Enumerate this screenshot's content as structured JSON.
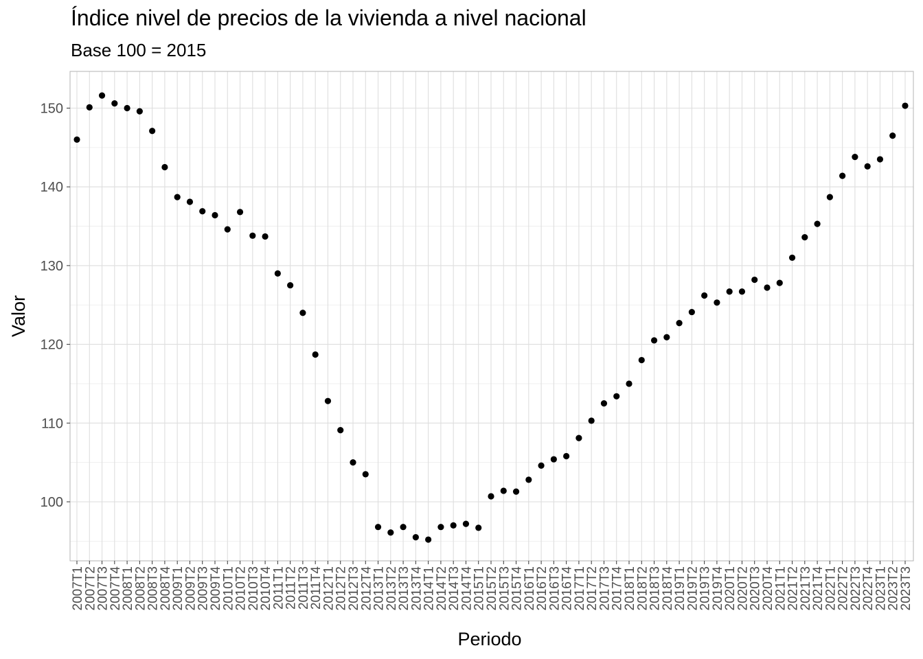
{
  "chart_data": {
    "type": "scatter",
    "title": "Índice nivel de precios de la vivienda a nivel nacional",
    "subtitle": "Base 100 = 2015",
    "xlabel": "Periodo",
    "ylabel": "Valor",
    "ylim": [
      94,
      155
    ],
    "yticks": [
      100,
      110,
      120,
      130,
      140,
      150
    ],
    "grid": true,
    "legend": "none",
    "point_color": "#000000",
    "categories": [
      "2007T1",
      "2007T2",
      "2007T3",
      "2007T4",
      "2008T1",
      "2008T2",
      "2008T3",
      "2008T4",
      "2009T1",
      "2009T2",
      "2009T3",
      "2009T4",
      "2010T1",
      "2010T2",
      "2010T3",
      "2010T4",
      "2011T1",
      "2011T2",
      "2011T3",
      "2011T4",
      "2012T1",
      "2012T2",
      "2012T3",
      "2012T4",
      "2013T1",
      "2013T2",
      "2013T3",
      "2013T4",
      "2014T1",
      "2014T2",
      "2014T3",
      "2014T4",
      "2015T1",
      "2015T2",
      "2015T3",
      "2015T4",
      "2016T1",
      "2016T2",
      "2016T3",
      "2016T4",
      "2017T1",
      "2017T2",
      "2017T3",
      "2017T4",
      "2018T1",
      "2018T2",
      "2018T3",
      "2018T4",
      "2019T1",
      "2019T2",
      "2019T3",
      "2019T4",
      "2020T1",
      "2020T2",
      "2020T3",
      "2020T4",
      "2021T1",
      "2021T2",
      "2021T3",
      "2021T4",
      "2022T1",
      "2022T2",
      "2022T3",
      "2022T4",
      "2023T1",
      "2023T2",
      "2023T3"
    ],
    "values": [
      146.0,
      150.1,
      151.6,
      150.6,
      150.0,
      149.6,
      147.1,
      142.5,
      138.7,
      138.1,
      136.9,
      136.4,
      134.6,
      136.8,
      133.8,
      133.7,
      129.0,
      127.5,
      124.0,
      118.7,
      112.8,
      109.1,
      105.0,
      103.5,
      96.8,
      96.1,
      96.8,
      95.5,
      95.2,
      96.8,
      97.0,
      97.2,
      96.7,
      100.7,
      101.4,
      101.3,
      102.8,
      104.6,
      105.4,
      105.8,
      108.1,
      110.3,
      112.5,
      113.4,
      115.0,
      118.0,
      120.5,
      120.9,
      122.7,
      124.1,
      126.2,
      125.3,
      126.7,
      126.7,
      128.2,
      127.2,
      127.8,
      131.0,
      133.6,
      135.3,
      138.7,
      141.4,
      143.8,
      142.6,
      143.5,
      146.5,
      150.3
    ]
  }
}
